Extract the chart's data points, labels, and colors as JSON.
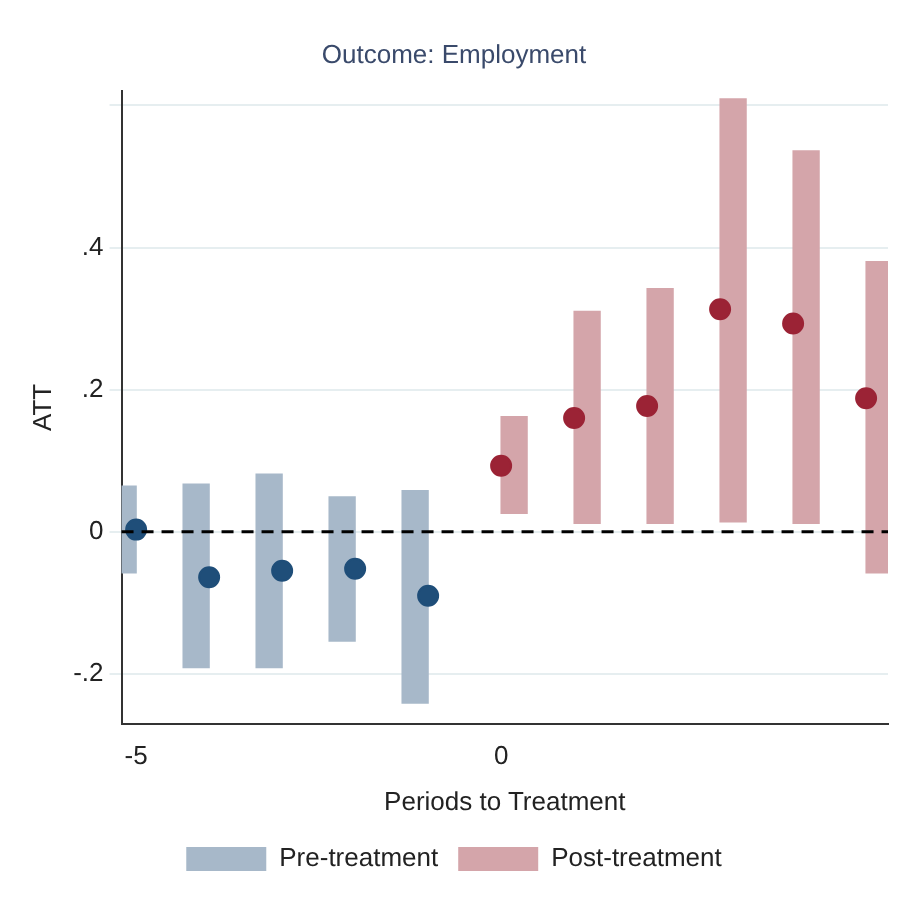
{
  "chart_data": {
    "type": "scatter",
    "title": "Outcome: Employment",
    "xlabel": "Periods to Treatment",
    "ylabel": "ATT",
    "xlim": [
      -5.2,
      5.3
    ],
    "xticks": [
      -5,
      0
    ],
    "ylim": [
      -0.27,
      0.62
    ],
    "yticks": [
      {
        "value": -0.2,
        "label": "-.2"
      },
      0,
      {
        "value": 0.2,
        "label": ".2"
      },
      {
        "value": 0.4,
        "label": ".4"
      },
      {
        "value": 0.6,
        "label": null
      }
    ],
    "grid": "y",
    "legend": "bottom",
    "marker": "circle",
    "ref_lines": [
      {
        "axis": "y",
        "value": 0,
        "color": "#000000",
        "line_style": "dashed"
      }
    ],
    "series": [
      {
        "name": "Pre-treatment",
        "type": "bar",
        "color": "#a7b8c9",
        "x": [
          -5,
          -4,
          -3,
          -2,
          -1
        ],
        "base": [
          -0.058,
          -0.191,
          -0.191,
          -0.154,
          -0.241
        ],
        "values": [
          0.122,
          0.258,
          0.272,
          0.203,
          0.299
        ]
      },
      {
        "name": "Post-treatment",
        "type": "bar",
        "color": "#d4a5aa",
        "x": [
          0,
          1,
          2,
          3,
          4,
          5
        ],
        "base": [
          0.026,
          0.012,
          0.012,
          0.014,
          0.012,
          -0.058
        ],
        "values": [
          0.136,
          0.298,
          0.33,
          0.595,
          0.524,
          0.438
        ]
      },
      {
        "color": "#1f4e79",
        "x": [
          -5,
          -4,
          -3,
          -2,
          -1
        ],
        "values": [
          0.003,
          -0.064,
          -0.055,
          -0.052,
          -0.09
        ]
      },
      {
        "color": "#9b2335",
        "x": [
          0,
          1,
          2,
          3,
          4,
          5
        ],
        "values": [
          0.093,
          0.16,
          0.177,
          0.313,
          0.293,
          0.188
        ]
      }
    ]
  }
}
